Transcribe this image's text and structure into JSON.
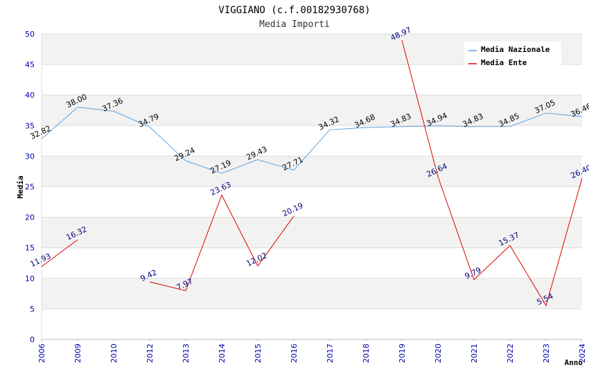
{
  "chart_data": {
    "type": "line",
    "title": "VIGGIANO (c.f.00182930768)",
    "subtitle": "Media Importi",
    "xlabel": "Anno",
    "ylabel": "Media",
    "ylim": [
      0,
      50
    ],
    "yticks": [
      "0",
      "5",
      "10",
      "15",
      "20",
      "25",
      "30",
      "35",
      "40",
      "45",
      "50"
    ],
    "categories": [
      "2006",
      "2009",
      "2010",
      "2012",
      "2013",
      "2014",
      "2015",
      "2016",
      "2017",
      "2018",
      "2019",
      "2020",
      "2021",
      "2022",
      "2023",
      "2024"
    ],
    "grid": true,
    "legend_position": "top-right",
    "series": [
      {
        "name": "Media Nazionale",
        "color": "#5aa0e0",
        "label_color": "#000000",
        "values": [
          32.82,
          38.0,
          37.36,
          34.79,
          29.24,
          27.19,
          29.43,
          27.71,
          34.32,
          34.68,
          34.83,
          34.94,
          34.83,
          34.85,
          37.05,
          36.46
        ],
        "labels": [
          "32.82",
          "38.00",
          "37.36",
          "34.79",
          "29.24",
          "27.19",
          "29.43",
          "27.71",
          "34.32",
          "34.68",
          "34.83",
          "34.94",
          "34.83",
          "34.85",
          "37.05",
          "36.46"
        ]
      },
      {
        "name": "Media Ente",
        "color": "#dd0000",
        "label_color": "#000080",
        "values": [
          11.93,
          16.32,
          null,
          9.42,
          7.97,
          23.63,
          12.02,
          20.19,
          null,
          null,
          48.97,
          26.64,
          9.79,
          15.37,
          5.54,
          26.4
        ],
        "labels": [
          "11.93",
          "16.32",
          null,
          "9.42",
          "7.97",
          "23.63",
          "12.02",
          "20.19",
          null,
          null,
          "48.97",
          "26.64",
          "9.79",
          "15.37",
          "5.54",
          "26.40"
        ]
      }
    ]
  }
}
